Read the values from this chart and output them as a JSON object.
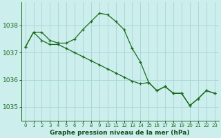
{
  "line1_x": [
    0,
    1,
    2,
    3,
    4,
    5,
    6,
    7,
    8,
    9,
    10,
    11,
    12,
    13,
    14,
    15,
    16,
    17,
    18,
    19,
    20,
    21,
    22,
    23
  ],
  "line1_y": [
    1037.2,
    1037.75,
    1037.75,
    1037.45,
    1037.35,
    1037.35,
    1037.5,
    1037.85,
    1038.15,
    1038.45,
    1038.4,
    1038.15,
    1037.85,
    1037.15,
    1036.65,
    1035.9,
    1035.6,
    1035.75,
    1035.5,
    1035.5,
    1035.05,
    1035.3,
    1035.6,
    1035.5
  ],
  "line2_x": [
    0,
    1,
    2,
    3,
    4,
    5,
    6,
    7,
    8,
    9,
    10,
    11,
    12,
    13,
    14,
    15,
    16,
    17,
    18,
    19,
    20,
    21,
    22,
    23
  ],
  "line2_y": [
    1037.2,
    1037.75,
    1037.45,
    1037.3,
    1037.3,
    1037.15,
    1037.0,
    1036.85,
    1036.7,
    1036.55,
    1036.4,
    1036.25,
    1036.1,
    1035.95,
    1035.85,
    1035.9,
    1035.6,
    1035.75,
    1035.5,
    1035.5,
    1035.05,
    1035.3,
    1035.6,
    1035.5
  ],
  "line_color": "#1a6b1a",
  "marker": "+",
  "bg_color": "#cceeed",
  "grid_color": "#aad8d8",
  "title": "Graphe pression niveau de la mer (hPa)",
  "title_color": "#1a4a1a",
  "ylim": [
    1034.5,
    1038.85
  ],
  "xlim": [
    -0.5,
    23.5
  ],
  "yticks": [
    1035,
    1036,
    1037,
    1038
  ],
  "xtick_labels": [
    "0",
    "1",
    "2",
    "3",
    "4",
    "5",
    "6",
    "7",
    "8",
    "9",
    "10",
    "11",
    "12",
    "13",
    "14",
    "15",
    "16",
    "17",
    "18",
    "19",
    "20",
    "21",
    "22",
    "23"
  ]
}
